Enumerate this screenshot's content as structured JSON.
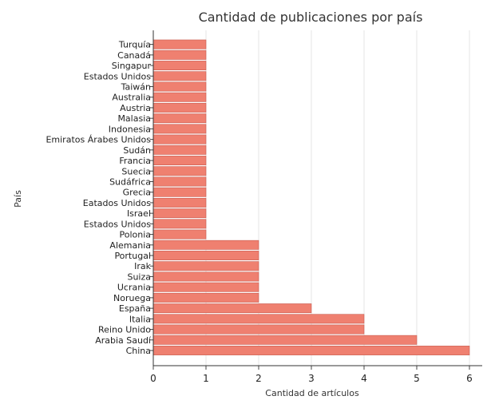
{
  "chart_data": {
    "type": "bar",
    "orientation": "horizontal",
    "title": "Cantidad de publicaciones por país",
    "xlabel": "Cantidad de artículos",
    "ylabel": "País",
    "categories": [
      "China",
      "Arabia Saudí",
      "Reino Unido",
      "Italia",
      "España",
      "Noruega",
      "Ucrania",
      "Suiza",
      "Irak",
      "Portugal",
      "Alemania",
      "Polonia",
      "Estados Unidos",
      "Israel",
      "Eatados Unidos",
      "Grecia",
      "Sudáfrica",
      "Suecia",
      "Francia",
      "Sudán",
      "Emiratos Árabes Unidos",
      "Indonesia",
      "Malasia",
      "Austria",
      "Australia",
      "Taiwán",
      "Estados Unidos ",
      "Singapur",
      "Canadá",
      "Turquía"
    ],
    "values": [
      6,
      5,
      4,
      4,
      3,
      2,
      2,
      2,
      2,
      2,
      2,
      1,
      1,
      1,
      1,
      1,
      1,
      1,
      1,
      1,
      1,
      1,
      1,
      1,
      1,
      1,
      1,
      1,
      1,
      1
    ],
    "xlim": [
      0,
      6.3
    ],
    "xticks": [
      "0",
      "1",
      "2",
      "3",
      "4",
      "5",
      "6"
    ],
    "grid": true,
    "bar_color": "#ef8070",
    "bar_edge_color": "#c85a4e"
  }
}
